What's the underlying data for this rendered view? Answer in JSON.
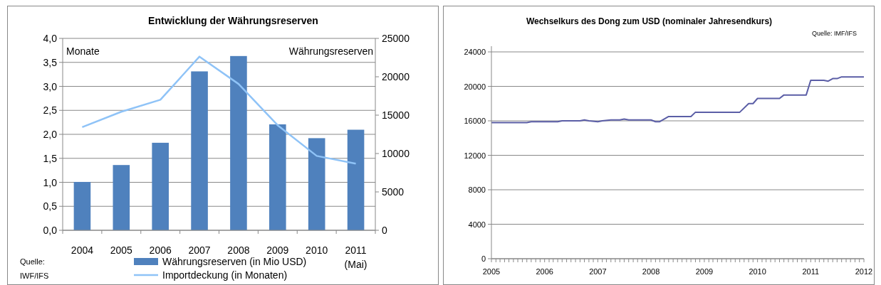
{
  "chart_data": [
    {
      "type": "bar",
      "title": "Entwicklung der Währungsreserven",
      "ylabel": "Monate",
      "y2label": "Währungsreserven",
      "categories": [
        "2004",
        "2005",
        "2006",
        "2007",
        "2008",
        "2009",
        "2010",
        "2011 (Mai)"
      ],
      "series": [
        {
          "name": "Währungsreserven (in Mio USD)",
          "type": "bar",
          "axis": "y2",
          "color": "#4f81bd",
          "values": [
            6300,
            8500,
            11400,
            20700,
            22700,
            13800,
            12000,
            13100
          ]
        },
        {
          "name": "Importdeckung (in Monaten)",
          "type": "line",
          "color": "#8fc3f7",
          "values": [
            2.15,
            2.47,
            2.72,
            3.62,
            3.05,
            2.19,
            1.55,
            1.39
          ]
        }
      ],
      "ylim": [
        0,
        4
      ],
      "yticks": [
        {
          "value": 0,
          "label": "0,0"
        },
        {
          "value": 0.5,
          "label": "0,5"
        },
        {
          "value": 1,
          "label": "1,0"
        },
        {
          "value": 1.5,
          "label": "1,5"
        },
        {
          "value": 2,
          "label": "2,0"
        },
        {
          "value": 2.5,
          "label": "2,5"
        },
        {
          "value": 3,
          "label": "3,0"
        },
        {
          "value": 3.5,
          "label": "3,5"
        },
        {
          "value": 4,
          "label": "4,0"
        }
      ],
      "y2lim": [
        0,
        25000
      ],
      "y2ticks": [
        0,
        5000,
        10000,
        15000,
        20000,
        25000
      ],
      "grid": "y",
      "legend": "bottom",
      "marker": "none",
      "annotations": [
        "Quelle: IWF/IFS"
      ]
    },
    {
      "type": "line",
      "title": "Wechselkurs des Dong zum USD (nominaler Jahresendkurs)",
      "x": [
        "2005-01",
        "2005-09",
        "2005-10",
        "2006-04",
        "2006-05",
        "2006-09",
        "2006-10",
        "2006-11",
        "2007-01",
        "2007-02",
        "2007-04",
        "2007-06",
        "2007-07",
        "2007-08",
        "2008-01",
        "2008-02",
        "2008-03",
        "2008-05",
        "2008-10",
        "2008-11",
        "2009-09",
        "2009-11",
        "2009-12",
        "2010-01",
        "2010-06",
        "2010-07",
        "2010-12",
        "2011-01",
        "2011-04",
        "2011-05",
        "2011-06",
        "2011-07",
        "2011-08",
        "2012-01"
      ],
      "series": [
        {
          "color": "#5b5ea6",
          "values": [
            15800,
            15800,
            15900,
            15900,
            16000,
            16000,
            16100,
            16000,
            15900,
            16000,
            16100,
            16100,
            16200,
            16100,
            16100,
            15900,
            15900,
            16500,
            16500,
            17000,
            17000,
            18000,
            18000,
            18600,
            18600,
            19000,
            19000,
            20700,
            20700,
            20600,
            20900,
            20900,
            21100,
            21100
          ]
        }
      ],
      "xlim": [
        "2005-01",
        "2012-01"
      ],
      "xticks": [
        "2005",
        "2006",
        "2007",
        "2008",
        "2009",
        "2010",
        "2011",
        "2012"
      ],
      "ylim": [
        0,
        24000
      ],
      "yticks": [
        0,
        4000,
        8000,
        12000,
        16000,
        20000,
        24000
      ],
      "grid": "y",
      "marker": "none",
      "line_style": "solid",
      "annotations": [
        "Quelle: IMF/IFS"
      ]
    }
  ]
}
